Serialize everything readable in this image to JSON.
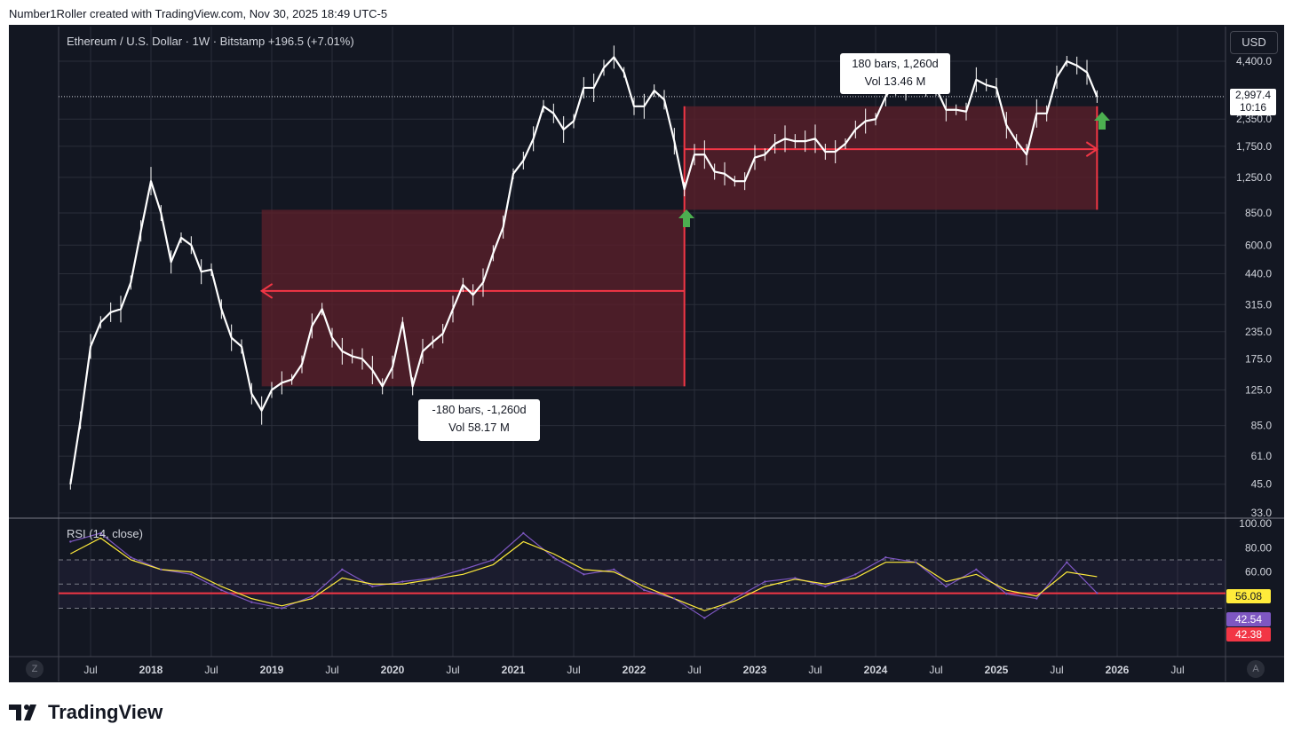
{
  "header": {
    "credit": "Number1Roller created with TradingView.com, Nov 30, 2025 18:49 UTC-5"
  },
  "toolbar": {
    "currency_label": "USD"
  },
  "legend": {
    "title": "Ethereum / U.S. Dollar · 1W · Bitstamp  +196.5 (+7.01%)"
  },
  "price_tag": {
    "price": "2,997.4",
    "timer": "10:16"
  },
  "annotations": {
    "lower": {
      "line1": "-180 bars, -1,260d",
      "line2": "Vol 58.17 M"
    },
    "upper": {
      "line1": "180 bars, 1,260d",
      "line2": "Vol 13.46 M"
    }
  },
  "rsi": {
    "label": "RSI (14, close)",
    "axis_ticks": [
      "100.00",
      "80.00",
      "60.00"
    ],
    "tags": [
      {
        "value": "56.08",
        "color": "#ffeb3b",
        "text_color": "#131722"
      },
      {
        "value": "42.54",
        "color": "#7e57c2",
        "text_color": "#ffffff"
      },
      {
        "value": "42.38",
        "color": "#f23645",
        "text_color": "#ffffff"
      }
    ]
  },
  "controls": {
    "z_button": "Z",
    "a_button": "A"
  },
  "brand": {
    "name": "TradingView"
  },
  "colors": {
    "background": "#131722",
    "candles": "#ffffff",
    "range_fill": "#5a1f2b",
    "range_line": "#f23645",
    "arrow_up": "#4caf50",
    "rsi_line": "#7e57c2",
    "rsi_ma": "#ffeb3b"
  },
  "chart_data": [
    {
      "type": "line",
      "title": "Ethereum / U.S. Dollar · 1W · Bitstamp",
      "scale": "log",
      "y_ticks": [
        "4,400.0",
        "2,997.4",
        "2,350.0",
        "1,750.0",
        "1,250.0",
        "850.0",
        "600.0",
        "440.0",
        "315.0",
        "235.0",
        "175.0",
        "125.0",
        "85.0",
        "61.0",
        "45.0",
        "33.0"
      ],
      "x_ticks": [
        "Jul",
        "2018",
        "Jul",
        "2019",
        "Jul",
        "2020",
        "Jul",
        "2021",
        "Jul",
        "2022",
        "Jul",
        "2023",
        "Jul",
        "2024",
        "Jul",
        "2025",
        "Jul",
        "2026",
        "Jul"
      ],
      "last_price": 2997.4,
      "series": [
        {
          "x": [
            "2017-05",
            "2017-06",
            "2017-07",
            "2017-08",
            "2017-09",
            "2017-10",
            "2017-11",
            "2017-12",
            "2018-01",
            "2018-02",
            "2018-03",
            "2018-04",
            "2018-05",
            "2018-06",
            "2018-07",
            "2018-08",
            "2018-09",
            "2018-10",
            "2018-11",
            "2018-12",
            "2019-01",
            "2019-02",
            "2019-03",
            "2019-04",
            "2019-05",
            "2019-06",
            "2019-07",
            "2019-08",
            "2019-09",
            "2019-10",
            "2019-11",
            "2019-12",
            "2020-01",
            "2020-02",
            "2020-03",
            "2020-04",
            "2020-05",
            "2020-06",
            "2020-07",
            "2020-08",
            "2020-09",
            "2020-10",
            "2020-11",
            "2020-12",
            "2021-01",
            "2021-02",
            "2021-03",
            "2021-04",
            "2021-05",
            "2021-06",
            "2021-07",
            "2021-08",
            "2021-09",
            "2021-10",
            "2021-11",
            "2021-12",
            "2022-01",
            "2022-02",
            "2022-03",
            "2022-04",
            "2022-05",
            "2022-06",
            "2022-07",
            "2022-08",
            "2022-09",
            "2022-10",
            "2022-11",
            "2022-12",
            "2023-01",
            "2023-02",
            "2023-03",
            "2023-04",
            "2023-05",
            "2023-06",
            "2023-07",
            "2023-08",
            "2023-09",
            "2023-10",
            "2023-11",
            "2023-12",
            "2024-01",
            "2024-02",
            "2024-03",
            "2024-04",
            "2024-05",
            "2024-06",
            "2024-07",
            "2024-08",
            "2024-09",
            "2024-10",
            "2024-11",
            "2024-12",
            "2025-01",
            "2025-02",
            "2025-03",
            "2025-04",
            "2025-05",
            "2025-06",
            "2025-07",
            "2025-08",
            "2025-09",
            "2025-10",
            "2025-11"
          ],
          "y": [
            45,
            90,
            200,
            260,
            290,
            300,
            400,
            700,
            1200,
            850,
            500,
            650,
            600,
            450,
            460,
            300,
            220,
            200,
            120,
            100,
            125,
            135,
            140,
            165,
            250,
            300,
            220,
            190,
            180,
            175,
            155,
            130,
            160,
            260,
            130,
            190,
            210,
            230,
            300,
            390,
            350,
            400,
            550,
            730,
            1300,
            1500,
            1900,
            2700,
            2500,
            2100,
            2300,
            3300,
            3300,
            4100,
            4600,
            3900,
            2700,
            2700,
            3200,
            2900,
            1850,
            1100,
            1600,
            1600,
            1330,
            1300,
            1200,
            1200,
            1550,
            1600,
            1800,
            1900,
            1850,
            1850,
            1900,
            1650,
            1650,
            1800,
            2100,
            2300,
            2350,
            3000,
            3500,
            3100,
            3700,
            3500,
            3300,
            2600,
            2600,
            2550,
            3600,
            3400,
            3300,
            2200,
            1850,
            1600,
            2500,
            2500,
            3700,
            4400,
            4200,
            3900,
            2997
          ]
        }
      ],
      "drawings": [
        {
          "kind": "date-price range",
          "label": "-180 bars, -1,260d",
          "volume": "Vol 58.17 M",
          "from": "2022-06",
          "to": "2018-12",
          "price_low": 130,
          "price_high": 880
        },
        {
          "kind": "date-price range",
          "label": "180 bars, 1,260d",
          "volume": "Vol 13.46 M",
          "from": "2022-06",
          "to": "2025-11",
          "price_low": 880,
          "price_high": 2700
        }
      ]
    },
    {
      "type": "line",
      "title": "RSI (14, close)",
      "ylim": [
        0,
        100
      ],
      "levels": [
        70,
        50,
        30
      ],
      "x": [
        "2017-05",
        "2017-08",
        "2017-11",
        "2018-02",
        "2018-05",
        "2018-08",
        "2018-11",
        "2019-02",
        "2019-05",
        "2019-08",
        "2019-11",
        "2020-02",
        "2020-05",
        "2020-08",
        "2020-11",
        "2021-02",
        "2021-05",
        "2021-08",
        "2021-11",
        "2022-02",
        "2022-05",
        "2022-08",
        "2022-11",
        "2023-02",
        "2023-05",
        "2023-08",
        "2023-11",
        "2024-02",
        "2024-05",
        "2024-08",
        "2024-11",
        "2025-02",
        "2025-05",
        "2025-08",
        "2025-11"
      ],
      "series": [
        {
          "name": "RSI",
          "values": [
            85,
            92,
            72,
            62,
            58,
            45,
            35,
            30,
            40,
            62,
            48,
            52,
            55,
            62,
            70,
            92,
            72,
            58,
            62,
            45,
            38,
            22,
            38,
            52,
            55,
            48,
            58,
            72,
            68,
            48,
            62,
            42,
            38,
            68,
            42.54
          ]
        },
        {
          "name": "RSI MA",
          "values": [
            75,
            88,
            70,
            62,
            60,
            48,
            38,
            32,
            38,
            55,
            50,
            50,
            54,
            58,
            66,
            85,
            75,
            62,
            60,
            48,
            38,
            28,
            36,
            48,
            54,
            50,
            55,
            68,
            68,
            52,
            58,
            45,
            40,
            60,
            56.08
          ]
        }
      ],
      "reference_line": 42.38
    }
  ]
}
